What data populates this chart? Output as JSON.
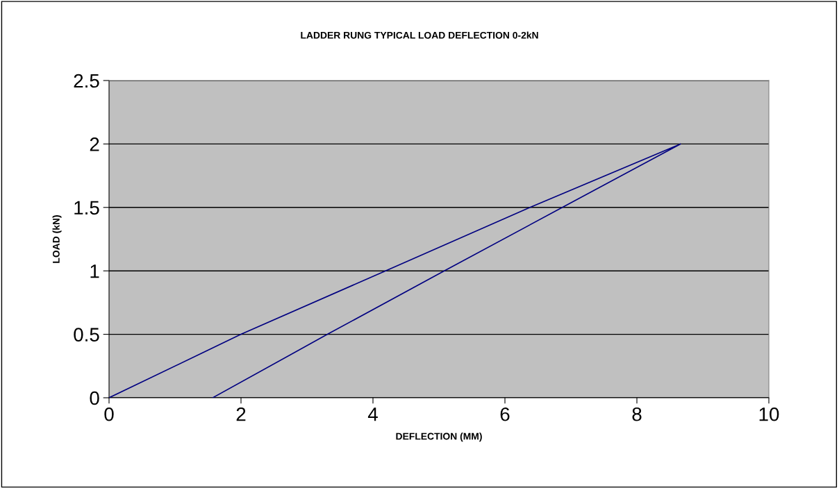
{
  "chart_data": {
    "type": "line",
    "title": "LADDER RUNG TYPICAL LOAD DEFLECTION 0-2kN",
    "xlabel": "DEFLECTION (MM)",
    "ylabel": "LOAD (kN)",
    "x": [
      0,
      2.0,
      4.19,
      6.38,
      8.66,
      6.87,
      5.08,
      3.31,
      1.57
    ],
    "series": [
      {
        "color": "#000080",
        "values": [
          0,
          0.5,
          1,
          1.5,
          2,
          1.5,
          1,
          0.5,
          0
        ]
      }
    ],
    "xlim": [
      0,
      10
    ],
    "xticks": [
      0,
      2,
      4,
      6,
      8,
      10
    ],
    "ylim": [
      0,
      2.5
    ],
    "yticks": [
      0,
      0.5,
      1,
      1.5,
      2,
      2.5
    ],
    "grid": "y",
    "marker": "none",
    "line_style": "solid"
  }
}
